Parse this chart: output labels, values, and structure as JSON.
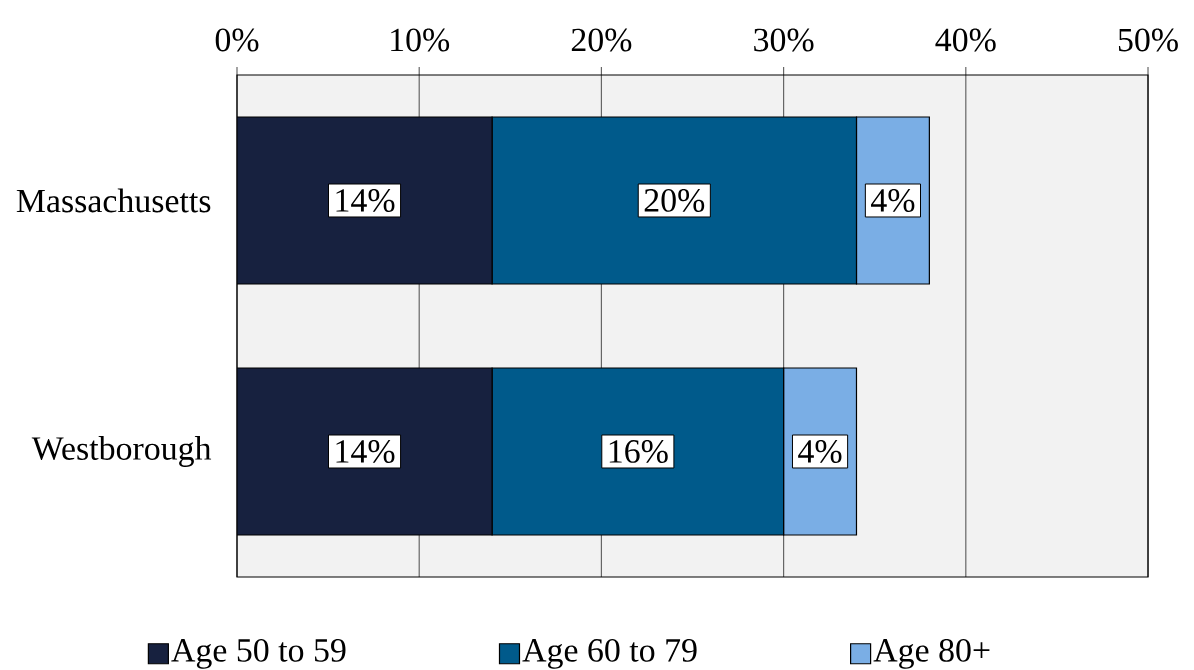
{
  "chart_data": {
    "type": "bar",
    "orientation": "horizontal",
    "stacked": true,
    "categories": [
      "Massachusetts",
      "Westborough"
    ],
    "series": [
      {
        "name": "Age 50 to 59",
        "color": "#17213f",
        "values": [
          14,
          14
        ],
        "value_labels": [
          "14%",
          "14%"
        ]
      },
      {
        "name": "Age 60 to 79",
        "color": "#005a8b",
        "values": [
          20,
          16
        ],
        "value_labels": [
          "20%",
          "16%"
        ]
      },
      {
        "name": "Age 80+",
        "color": "#7aaee5",
        "values": [
          4,
          4
        ],
        "value_labels": [
          "4%",
          "4%"
        ]
      }
    ],
    "xlim": [
      0,
      50
    ],
    "xticks": [
      {
        "value": 0,
        "label": "0%"
      },
      {
        "value": 10,
        "label": "10%"
      },
      {
        "value": 20,
        "label": "20%"
      },
      {
        "value": 30,
        "label": "30%"
      },
      {
        "value": 40,
        "label": "40%"
      },
      {
        "value": 50,
        "label": "50%"
      }
    ],
    "grid": "x",
    "legend": "bottom"
  }
}
